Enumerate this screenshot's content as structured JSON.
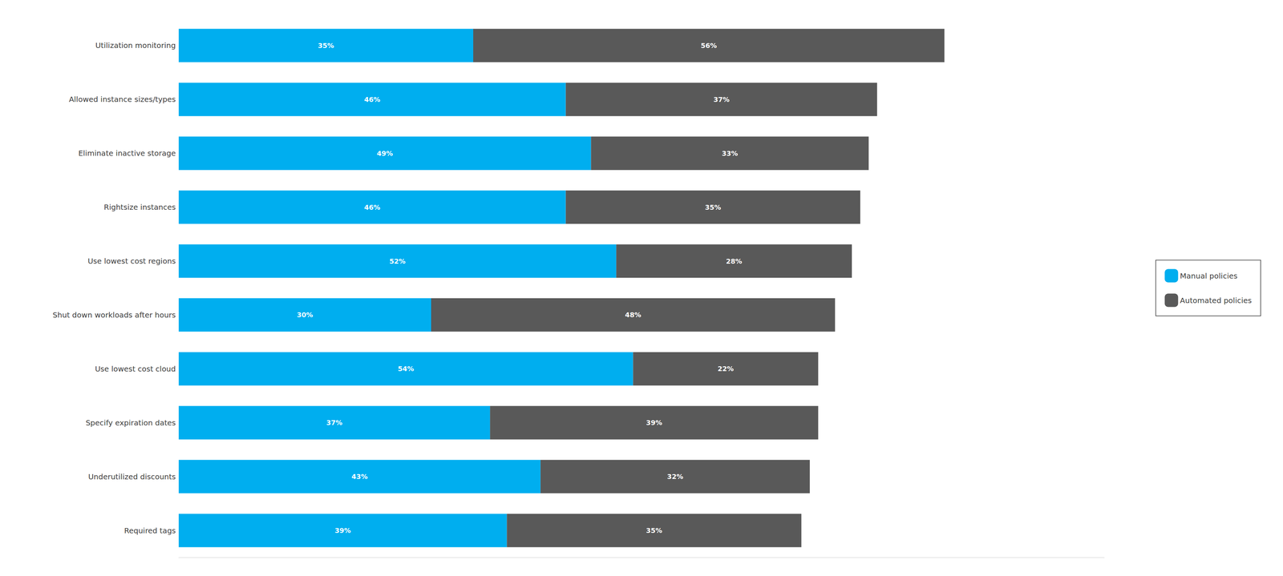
{
  "chart_data": {
    "type": "bar",
    "orientation": "horizontal",
    "stacked": true,
    "categories": [
      "Utilization monitoring",
      "Allowed instance sizes/types",
      "Eliminate inactive storage",
      "Rightsize instances",
      "Use lowest cost regions",
      "Shut down workloads after hours",
      "Use lowest cost cloud",
      "Specify expiration dates",
      "Underutilized discounts",
      "Required tags"
    ],
    "series": [
      {
        "name": "Manual policies",
        "color": "#00AEEF",
        "values": [
          35,
          46,
          49,
          46,
          52,
          30,
          54,
          37,
          43,
          39
        ],
        "value_labels": [
          "35%",
          "46%",
          "49%",
          "46%",
          "52%",
          "30%",
          "54%",
          "37%",
          "43%",
          "39%"
        ]
      },
      {
        "name": "Automated policies",
        "color": "#595959",
        "values": [
          56,
          37,
          33,
          35,
          28,
          48,
          22,
          39,
          32,
          35
        ],
        "value_labels": [
          "56%",
          "37%",
          "33%",
          "35%",
          "28%",
          "48%",
          "22%",
          "39%",
          "32%",
          "35%"
        ]
      }
    ],
    "xlim": [
      0,
      110
    ],
    "xticks": [],
    "tick_labels": "y",
    "data_labels": true,
    "grid": false,
    "legend": "right"
  }
}
